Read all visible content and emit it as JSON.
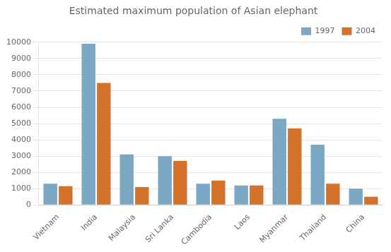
{
  "chart_data": {
    "type": "bar",
    "title": "Estimated maximum population of Asian elephant",
    "categories": [
      "Vietnam",
      "India",
      "Malaysia",
      "Sri Lanka",
      "Cambodia",
      "Laos",
      "Myanmar",
      "Thailand",
      "China"
    ],
    "series": [
      {
        "name": "1997",
        "color": "#7BA7C4",
        "values": [
          1300,
          9900,
          3100,
          3000,
          1300,
          1200,
          5300,
          3700,
          1000
        ]
      },
      {
        "name": "2004",
        "color": "#D4722A",
        "values": [
          1150,
          7500,
          1100,
          2700,
          1500,
          1200,
          4700,
          1300,
          500
        ]
      }
    ],
    "ylim": [
      0,
      10000
    ],
    "yticks": [
      0,
      1000,
      2000,
      3000,
      4000,
      5000,
      6000,
      7000,
      8000,
      9000,
      10000
    ],
    "grid": true,
    "legend": "upper right"
  }
}
